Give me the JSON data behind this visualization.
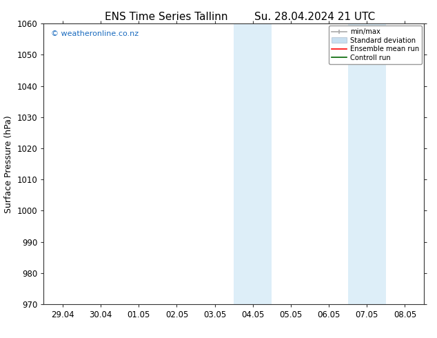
{
  "title_left": "ENS Time Series Tallinn",
  "title_right": "Su. 28.04.2024 21 UTC",
  "ylabel": "Surface Pressure (hPa)",
  "ylim": [
    970,
    1060
  ],
  "yticks": [
    970,
    980,
    990,
    1000,
    1010,
    1020,
    1030,
    1040,
    1050,
    1060
  ],
  "xtick_labels": [
    "29.04",
    "30.04",
    "01.05",
    "02.05",
    "03.05",
    "04.05",
    "05.05",
    "06.05",
    "07.05",
    "08.05"
  ],
  "xtick_positions": [
    0,
    1,
    2,
    3,
    4,
    5,
    6,
    7,
    8,
    9
  ],
  "xlim": [
    -0.5,
    9.5
  ],
  "shaded_regions": [
    {
      "x_start": 4.5,
      "x_end": 5.5,
      "color": "#ddeef8"
    },
    {
      "x_start": 7.5,
      "x_end": 8.5,
      "color": "#ddeef8"
    }
  ],
  "watermark": "© weatheronline.co.nz",
  "watermark_color": "#1a6bbf",
  "bg_color": "#ffffff",
  "plot_bg_color": "#ffffff",
  "spine_color": "#000000",
  "title_fontsize": 11,
  "label_fontsize": 9,
  "tick_fontsize": 8.5
}
